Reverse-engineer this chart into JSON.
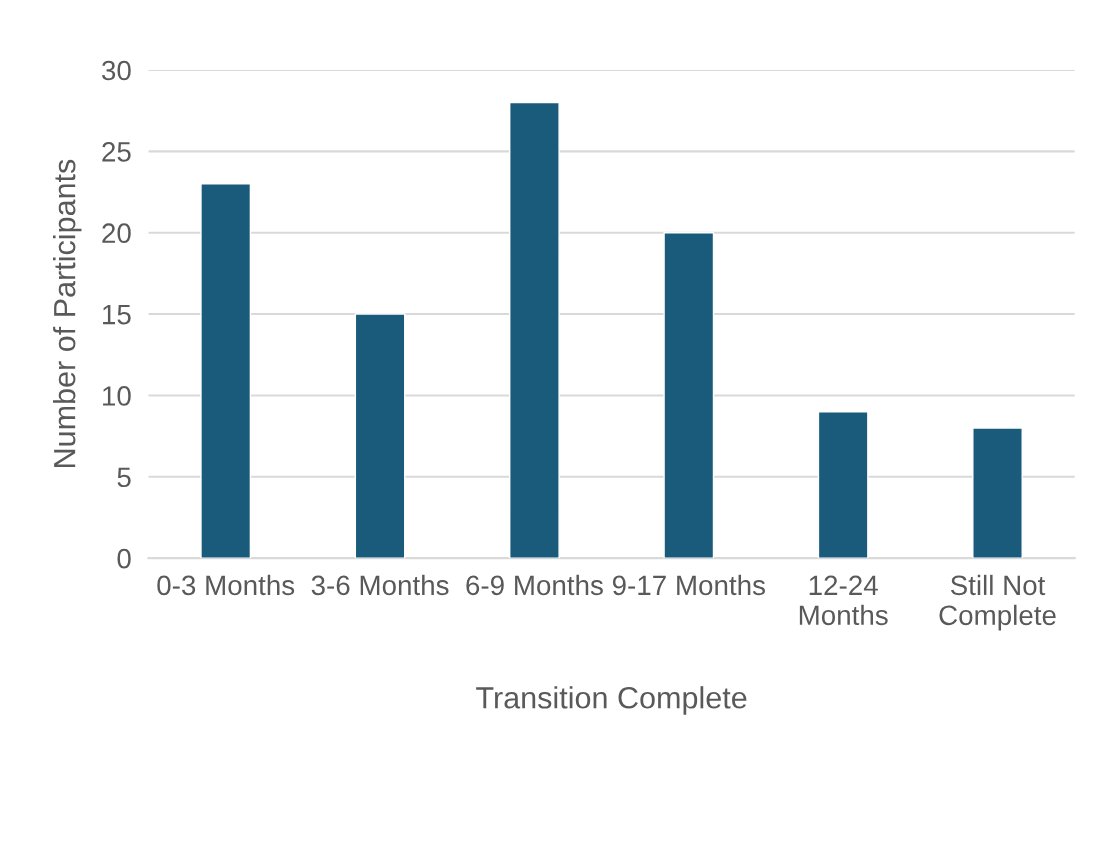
{
  "chart_data": {
    "type": "bar",
    "xlabel": "Transition Complete",
    "ylabel": "Number of Participants",
    "categories": [
      "0-3 Months",
      "3-6 Months",
      "6-9 Months",
      "9-17 Months",
      "12-24\nMonths",
      "Still Not\nComplete"
    ],
    "values": [
      23,
      15,
      28,
      20,
      9,
      8
    ],
    "color": "#1a5b7b",
    "ylim": [
      0,
      30
    ],
    "yticks": [
      0,
      5,
      10,
      15,
      20,
      25,
      30
    ],
    "grid": "y",
    "legend": false
  }
}
